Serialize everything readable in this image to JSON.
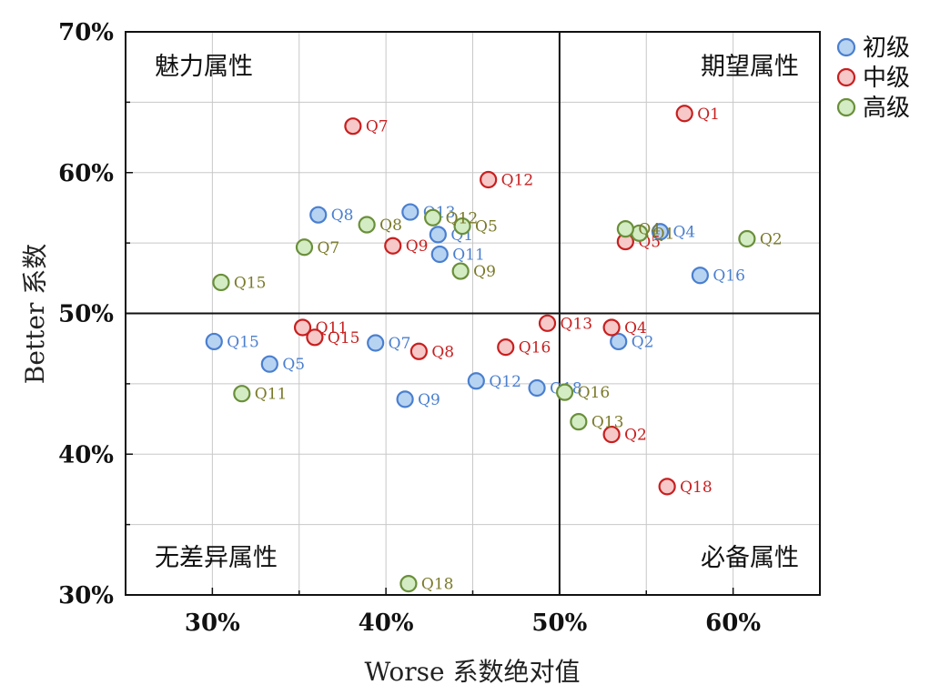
{
  "chart_data": {
    "type": "scatter",
    "xlabel": "Worse 系数绝对值",
    "ylabel": "Better 系数",
    "xlim": [
      25,
      65
    ],
    "ylim": [
      30,
      70
    ],
    "x_ticks": [
      30,
      40,
      50,
      60
    ],
    "y_ticks": [
      30,
      40,
      50,
      60,
      70
    ],
    "x_tick_labels": [
      "30%",
      "40%",
      "50%",
      "60%"
    ],
    "y_tick_labels": [
      "30%",
      "40%",
      "50%",
      "60%",
      "70%"
    ],
    "grid": true,
    "legend_position": "top-right",
    "divider": {
      "x": 50,
      "y": 50
    },
    "quadrants": {
      "top_left": "魅力属性",
      "top_right": "期望属性",
      "bottom_left": "无差异属性",
      "bottom_right": "必备属性"
    },
    "series": [
      {
        "name": "初级",
        "fill": "#b7d3f2",
        "stroke": "#4a7fcf",
        "label_color": "#4a7fcf",
        "points": [
          {
            "label": "Q1",
            "x": 43.0,
            "y": 55.6
          },
          {
            "label": "Q2",
            "x": 53.4,
            "y": 48.0
          },
          {
            "label": "Q4",
            "x": 55.8,
            "y": 55.8
          },
          {
            "label": "Q5",
            "x": 33.3,
            "y": 46.4
          },
          {
            "label": "Q7",
            "x": 39.4,
            "y": 47.9
          },
          {
            "label": "Q8",
            "x": 36.1,
            "y": 57.0
          },
          {
            "label": "Q9",
            "x": 41.1,
            "y": 43.9
          },
          {
            "label": "Q11",
            "x": 43.1,
            "y": 54.2
          },
          {
            "label": "Q12",
            "x": 45.2,
            "y": 45.2
          },
          {
            "label": "Q13",
            "x": 41.4,
            "y": 57.2
          },
          {
            "label": "Q15",
            "x": 30.1,
            "y": 48.0
          },
          {
            "label": "Q16",
            "x": 58.1,
            "y": 52.7
          },
          {
            "label": "Q18",
            "x": 48.7,
            "y": 44.7
          }
        ]
      },
      {
        "name": "中级",
        "fill": "#f6c8c8",
        "stroke": "#c81f1f",
        "label_color": "#c81f1f",
        "points": [
          {
            "label": "Q1",
            "x": 57.2,
            "y": 64.2
          },
          {
            "label": "Q2",
            "x": 53.0,
            "y": 41.4
          },
          {
            "label": "Q4",
            "x": 53.0,
            "y": 49.0
          },
          {
            "label": "Q5",
            "x": 53.8,
            "y": 55.1
          },
          {
            "label": "Q7",
            "x": 38.1,
            "y": 63.3
          },
          {
            "label": "Q8",
            "x": 41.9,
            "y": 47.3
          },
          {
            "label": "Q9",
            "x": 40.4,
            "y": 54.8
          },
          {
            "label": "Q11",
            "x": 35.2,
            "y": 49.0
          },
          {
            "label": "Q12",
            "x": 45.9,
            "y": 59.5
          },
          {
            "label": "Q13",
            "x": 49.3,
            "y": 49.3
          },
          {
            "label": "Q15",
            "x": 35.9,
            "y": 48.3
          },
          {
            "label": "Q16",
            "x": 46.9,
            "y": 47.6
          },
          {
            "label": "Q18",
            "x": 56.2,
            "y": 37.7
          }
        ]
      },
      {
        "name": "高级",
        "fill": "#d3ecc3",
        "stroke": "#6a8f3a",
        "label_color": "#7a7a2a",
        "points": [
          {
            "label": "Q1",
            "x": 54.6,
            "y": 55.7
          },
          {
            "label": "Q2",
            "x": 60.8,
            "y": 55.3
          },
          {
            "label": "Q4",
            "x": 53.8,
            "y": 56.0
          },
          {
            "label": "Q5",
            "x": 44.4,
            "y": 56.2
          },
          {
            "label": "Q7",
            "x": 35.3,
            "y": 54.7
          },
          {
            "label": "Q8",
            "x": 38.9,
            "y": 56.3
          },
          {
            "label": "Q9",
            "x": 44.3,
            "y": 53.0
          },
          {
            "label": "Q11",
            "x": 31.7,
            "y": 44.3
          },
          {
            "label": "Q12",
            "x": 42.7,
            "y": 56.8
          },
          {
            "label": "Q13",
            "x": 51.1,
            "y": 42.3
          },
          {
            "label": "Q15",
            "x": 30.5,
            "y": 52.2
          },
          {
            "label": "Q16",
            "x": 50.3,
            "y": 44.4
          },
          {
            "label": "Q18",
            "x": 41.3,
            "y": 30.8
          }
        ]
      }
    ]
  }
}
